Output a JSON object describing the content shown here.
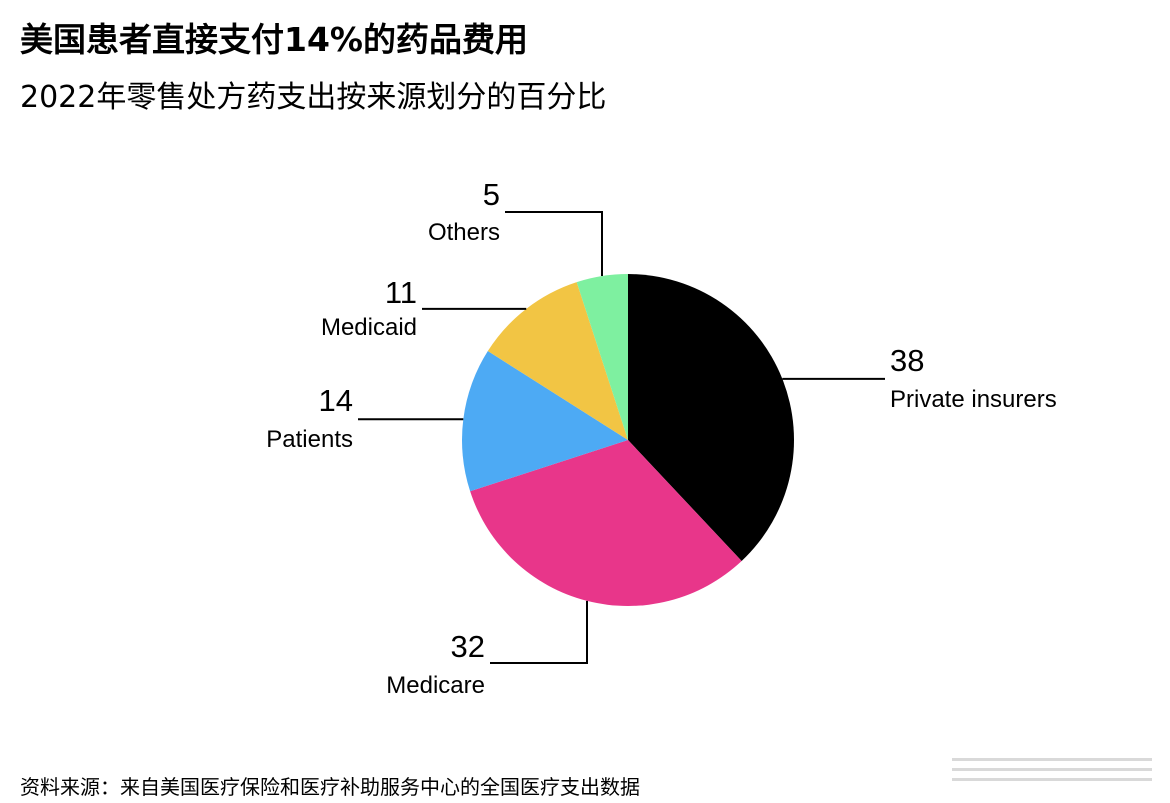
{
  "chart_data": {
    "type": "pie",
    "title": "美国患者直接支付14%的药品费用",
    "subtitle": "2022年零售处方药支出按来源划分的百分比",
    "source": "资料来源：来自美国医疗保险和医疗补助服务中心的全国医疗支出数据",
    "start": "12 o'clock",
    "direction": "clockwise",
    "slices": [
      {
        "label": "Private insurers",
        "value": 38,
        "display_value": "38",
        "color": "#000000"
      },
      {
        "label": "Medicare",
        "value": 32,
        "display_value": "32",
        "color": "#e8368a"
      },
      {
        "label": "Patients",
        "value": 14,
        "display_value": "14",
        "color": "#4daaf4"
      },
      {
        "label": "Medicaid",
        "value": 11,
        "display_value": "11",
        "color": "#f2c544"
      },
      {
        "label": "Others",
        "value": 5,
        "display_value": "5",
        "color": "#7ef0a0"
      }
    ]
  }
}
